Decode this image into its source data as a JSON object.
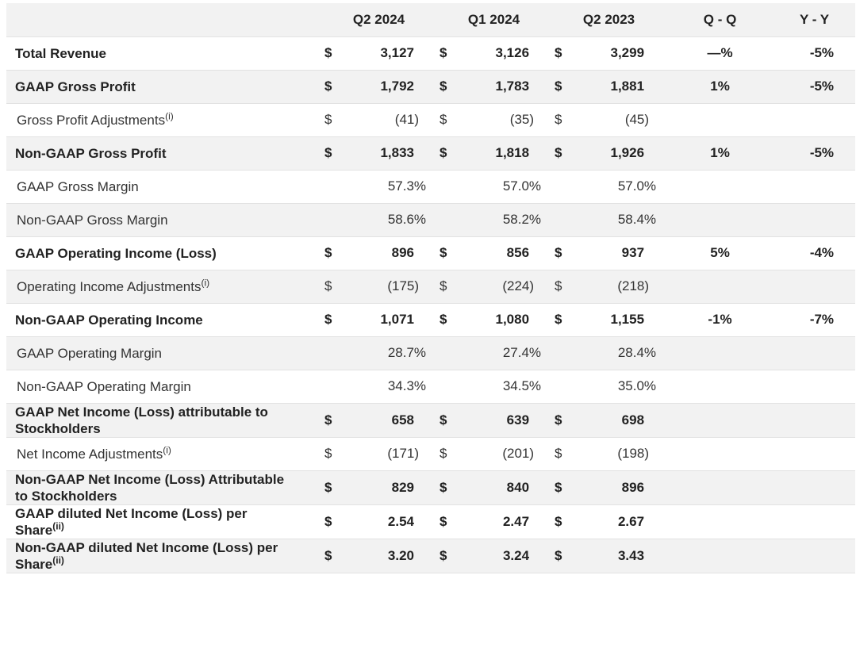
{
  "header": {
    "columns": [
      "Q2 2024",
      "Q1 2024",
      "Q2 2023",
      "Q - Q",
      "Y - Y"
    ]
  },
  "table": {
    "rows": [
      {
        "label": "Total Revenue",
        "bold": true,
        "currency": "$",
        "values": [
          "3,127",
          "3,126",
          "3,299"
        ],
        "qq": "—%",
        "yy": "-5%"
      },
      {
        "label": "GAAP Gross Profit",
        "bold": true,
        "currency": "$",
        "values": [
          "1,792",
          "1,783",
          "1,881"
        ],
        "qq": "1%",
        "yy": "-5%"
      },
      {
        "label": "Gross Profit Adjustments",
        "note": "(i)",
        "bold": false,
        "currency": "$",
        "values": [
          "(41)",
          "(35)",
          "(45)"
        ]
      },
      {
        "label": "Non-GAAP Gross Profit",
        "bold": true,
        "currency": "$",
        "values": [
          "1,833",
          "1,818",
          "1,926"
        ],
        "qq": "1%",
        "yy": "-5%"
      },
      {
        "label": "GAAP Gross Margin",
        "bold": false,
        "values": [
          "57.3%",
          "57.0%",
          "57.0%"
        ]
      },
      {
        "label": "Non-GAAP Gross Margin",
        "bold": false,
        "values": [
          "58.6%",
          "58.2%",
          "58.4%"
        ]
      },
      {
        "label": "GAAP Operating Income (Loss)",
        "bold": true,
        "currency": "$",
        "values": [
          "896",
          "856",
          "937"
        ],
        "qq": "5%",
        "yy": "-4%"
      },
      {
        "label": "Operating Income Adjustments",
        "note": "(i)",
        "bold": false,
        "currency": "$",
        "values": [
          "(175)",
          "(224)",
          "(218)"
        ]
      },
      {
        "label": "Non-GAAP Operating Income",
        "bold": true,
        "currency": "$",
        "values": [
          "1,071",
          "1,080",
          "1,155"
        ],
        "qq": "-1%",
        "yy": "-7%"
      },
      {
        "label": "GAAP Operating Margin",
        "bold": false,
        "values": [
          "28.7%",
          "27.4%",
          "28.4%"
        ]
      },
      {
        "label": "Non-GAAP Operating Margin",
        "bold": false,
        "values": [
          "34.3%",
          "34.5%",
          "35.0%"
        ]
      },
      {
        "label": "GAAP Net Income (Loss) attributable to Stockholders",
        "bold": true,
        "currency": "$",
        "values": [
          "658",
          "639",
          "698"
        ]
      },
      {
        "label": "Net Income Adjustments",
        "note": "(i)",
        "bold": false,
        "currency": "$",
        "values": [
          "(171)",
          "(201)",
          "(198)"
        ]
      },
      {
        "label": "Non-GAAP Net Income (Loss) Attributable to Stockholders",
        "bold": true,
        "currency": "$",
        "values": [
          "829",
          "840",
          "896"
        ]
      },
      {
        "label": "GAAP diluted Net Income (Loss) per Share",
        "note": "(ii)",
        "bold": true,
        "currency": "$",
        "values": [
          "2.54",
          "2.47",
          "2.67"
        ]
      },
      {
        "label": "Non-GAAP diluted Net Income (Loss) per Share",
        "note": "(ii)",
        "bold": true,
        "currency": "$",
        "values": [
          "3.20",
          "3.24",
          "3.43"
        ]
      }
    ]
  }
}
